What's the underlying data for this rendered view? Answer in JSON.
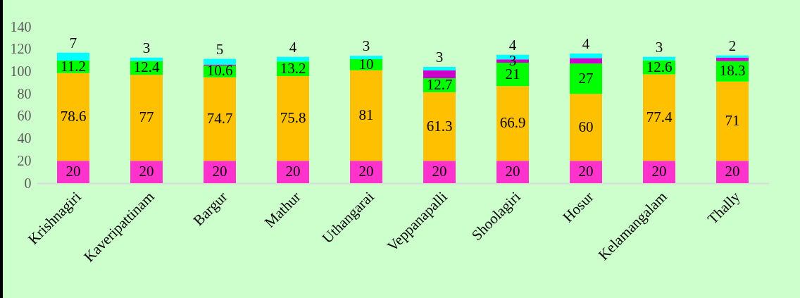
{
  "chart_data": {
    "type": "bar",
    "stacked": true,
    "categories": [
      "Krishnagiri",
      "Kaveripattinam",
      "Bargur",
      "Mathur",
      "Uthangarai",
      "Veppanapalli",
      "Shoolagiri",
      "Hosur",
      "Kelamangalam",
      "Thally"
    ],
    "series": [
      {
        "color": "#ff33cc",
        "values": [
          20,
          20,
          20,
          20,
          20,
          20,
          20,
          20,
          20,
          20
        ],
        "value_labels": [
          "20",
          "20",
          "20",
          "20",
          "20",
          "20",
          "20",
          "20",
          "20",
          "20"
        ]
      },
      {
        "color": "#ffc000",
        "values": [
          78.6,
          77,
          74.7,
          75.8,
          81,
          61.3,
          66.9,
          60,
          77.4,
          71
        ],
        "value_labels": [
          "78.6",
          "77",
          "74.7",
          "75.8",
          "81",
          "61.3",
          "66.9",
          "60",
          "77.4",
          "71"
        ]
      },
      {
        "color": "#00ff00",
        "values": [
          11.2,
          12.4,
          10.6,
          13.2,
          10,
          12.7,
          21,
          27,
          12.6,
          18.3
        ],
        "value_labels": [
          "11.2",
          "12.4",
          "10.6",
          "13.2",
          "10",
          "12.7",
          "21",
          "27",
          "12.6",
          "18.3"
        ]
      },
      {
        "color": "#cc00cc",
        "values": [
          null,
          null,
          1,
          null,
          null,
          7,
          3,
          5,
          null,
          3
        ],
        "value_labels": [
          null,
          null,
          null,
          null,
          null,
          null,
          "3",
          null,
          null,
          null
        ]
      },
      {
        "color": "#00ffff",
        "values": [
          7,
          3,
          5,
          4,
          3,
          3,
          4,
          4,
          3,
          2
        ],
        "value_labels": [
          "7",
          "3",
          "5",
          "4",
          "3",
          "3",
          "4",
          "4",
          "3",
          "2"
        ]
      }
    ],
    "ylim": [
      0,
      140
    ],
    "yticks": [
      0,
      20,
      40,
      60,
      80,
      100,
      120,
      140
    ],
    "grid": false,
    "legend": false
  }
}
